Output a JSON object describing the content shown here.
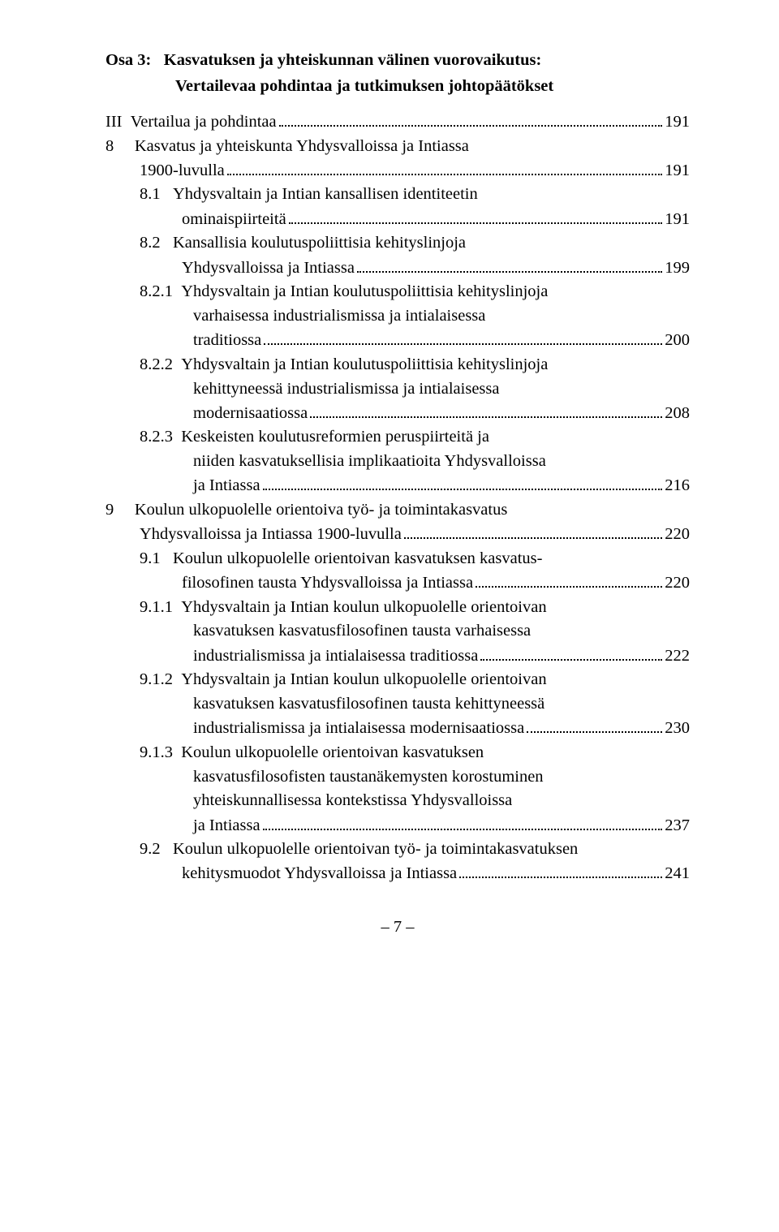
{
  "osa": {
    "label": "Osa 3:",
    "title_l1": "Kasvatuksen ja yhteiskunnan välinen vuorovaikutus:",
    "title_l2": "Vertailevaa pohdintaa ja tutkimuksen johtopäätökset"
  },
  "toc": {
    "r1": {
      "num": "III",
      "text": "Vertailua ja pohdintaa",
      "page": "191"
    },
    "r2": {
      "num": "8",
      "text": "Kasvatus ja yhteiskunta Yhdysvalloissa ja Intiassa"
    },
    "r2b": {
      "text": "1900-luvulla",
      "page": "191"
    },
    "r3": {
      "num": "8.1",
      "text": "Yhdysvaltain ja Intian kansallisen identiteetin"
    },
    "r3b": {
      "text": "ominaispiirteitä",
      "page": "191"
    },
    "r4": {
      "num": "8.2",
      "text": "Kansallisia koulutuspoliittisia kehityslinjoja"
    },
    "r4b": {
      "text": "Yhdysvalloissa ja Intiassa",
      "page": "199"
    },
    "r5": {
      "num": "8.2.1",
      "text": "Yhdysvaltain ja Intian koulutuspoliittisia kehityslinjoja"
    },
    "r5b": {
      "text": "varhaisessa industrialismissa ja intialaisessa"
    },
    "r5c": {
      "text": "traditiossa",
      "page": "200"
    },
    "r6": {
      "num": "8.2.2",
      "text": "Yhdysvaltain ja Intian koulutuspoliittisia kehityslinjoja"
    },
    "r6b": {
      "text": "kehittyneessä industrialismissa ja intialaisessa"
    },
    "r6c": {
      "text": "modernisaatiossa",
      "page": "208"
    },
    "r7": {
      "num": "8.2.3",
      "text": "Keskeisten koulutusreformien peruspiirteitä ja"
    },
    "r7b": {
      "text": "niiden kasvatuksellisia implikaatioita Yhdysvalloissa"
    },
    "r7c": {
      "text": "ja Intiassa",
      "page": "216"
    },
    "r8": {
      "num": "9",
      "text": "Koulun ulkopuolelle orientoiva työ- ja toimintakasvatus"
    },
    "r8b": {
      "text": "Yhdysvalloissa ja Intiassa 1900-luvulla",
      "page": "220"
    },
    "r9": {
      "num": "9.1",
      "text": "Koulun ulkopuolelle orientoivan kasvatuksen kasvatus-"
    },
    "r9b": {
      "text": "filosofinen tausta Yhdysvalloissa ja Intiassa",
      "page": "220"
    },
    "r10": {
      "num": "9.1.1",
      "text": "Yhdysvaltain ja Intian koulun ulkopuolelle orientoivan"
    },
    "r10b": {
      "text": "kasvatuksen kasvatusfilosofinen tausta varhaisessa"
    },
    "r10c": {
      "text": "industrialismissa ja intialaisessa traditiossa",
      "page": "222"
    },
    "r11": {
      "num": "9.1.2",
      "text": "Yhdysvaltain ja Intian koulun ulkopuolelle orientoivan"
    },
    "r11b": {
      "text": "kasvatuksen kasvatusfilosofinen tausta kehittyneessä"
    },
    "r11c": {
      "text": "industrialismissa ja intialaisessa modernisaatiossa",
      "page": "230"
    },
    "r12": {
      "num": "9.1.3",
      "text": "Koulun ulkopuolelle orientoivan kasvatuksen"
    },
    "r12b": {
      "text": "kasvatusfilosofisten taustanäkemysten korostuminen"
    },
    "r12c": {
      "text": "yhteiskunnallisessa kontekstissa Yhdysvalloissa"
    },
    "r12d": {
      "text": "ja Intiassa",
      "page": "237"
    },
    "r13": {
      "num": "9.2",
      "text": "Koulun ulkopuolelle orientoivan työ- ja toimintakasvatuksen"
    },
    "r13b": {
      "text": "kehitysmuodot Yhdysvalloissa ja Intiassa",
      "page": "241"
    }
  },
  "page_number": "– 7 –"
}
